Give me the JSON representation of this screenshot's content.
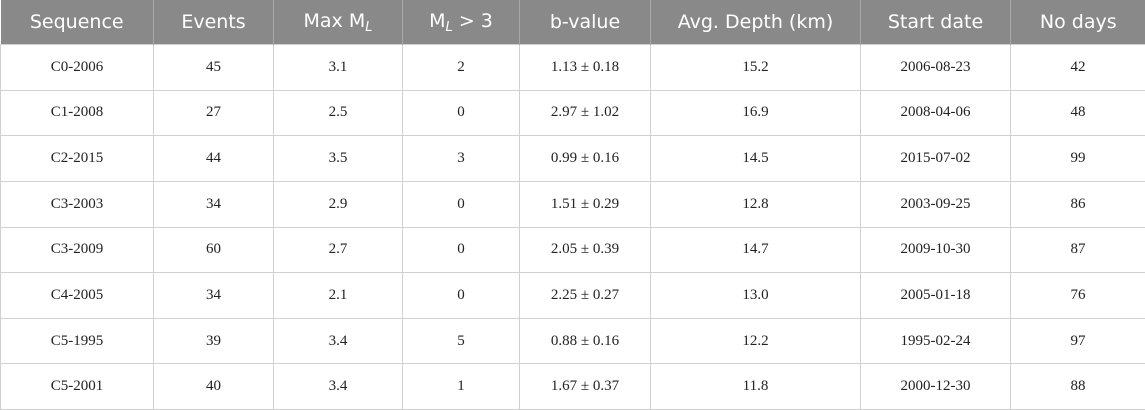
{
  "table": {
    "header": [
      [
        {
          "text": "Sequence"
        }
      ],
      [
        {
          "text": "Events"
        }
      ],
      [
        {
          "text": "Max M"
        },
        {
          "text": "L",
          "sub": true
        }
      ],
      [
        {
          "text": "M"
        },
        {
          "text": "L",
          "sub": true
        },
        {
          "text": " > 3"
        }
      ],
      [
        {
          "text": "b-value"
        }
      ],
      [
        {
          "text": "Avg. Depth (km)"
        }
      ],
      [
        {
          "text": "Start date"
        }
      ],
      [
        {
          "text": "No days"
        }
      ]
    ],
    "rows": [
      [
        "C0-2006",
        "45",
        "3.1",
        "2",
        "1.13 ± 0.18",
        "15.2",
        "2006-08-23",
        "42"
      ],
      [
        "C1-2008",
        "27",
        "2.5",
        "0",
        "2.97 ± 1.02",
        "16.9",
        "2008-04-06",
        "48"
      ],
      [
        "C2-2015",
        "44",
        "3.5",
        "3",
        "0.99 ± 0.16",
        "14.5",
        "2015-07-02",
        "99"
      ],
      [
        "C3-2003",
        "34",
        "2.9",
        "0",
        "1.51 ± 0.29",
        "12.8",
        "2003-09-25",
        "86"
      ],
      [
        "C3-2009",
        "60",
        "2.7",
        "0",
        "2.05 ± 0.39",
        "14.7",
        "2009-10-30",
        "87"
      ],
      [
        "C4-2005",
        "34",
        "2.1",
        "0",
        "2.25 ± 0.27",
        "13.0",
        "2005-01-18",
        "76"
      ],
      [
        "C5-1995",
        "39",
        "3.4",
        "5",
        "0.88 ± 0.16",
        "12.2",
        "1995-02-24",
        "97"
      ],
      [
        "C5-2001",
        "40",
        "3.4",
        "1",
        "1.67 ± 0.37",
        "11.8",
        "2000-12-30",
        "88"
      ]
    ]
  }
}
